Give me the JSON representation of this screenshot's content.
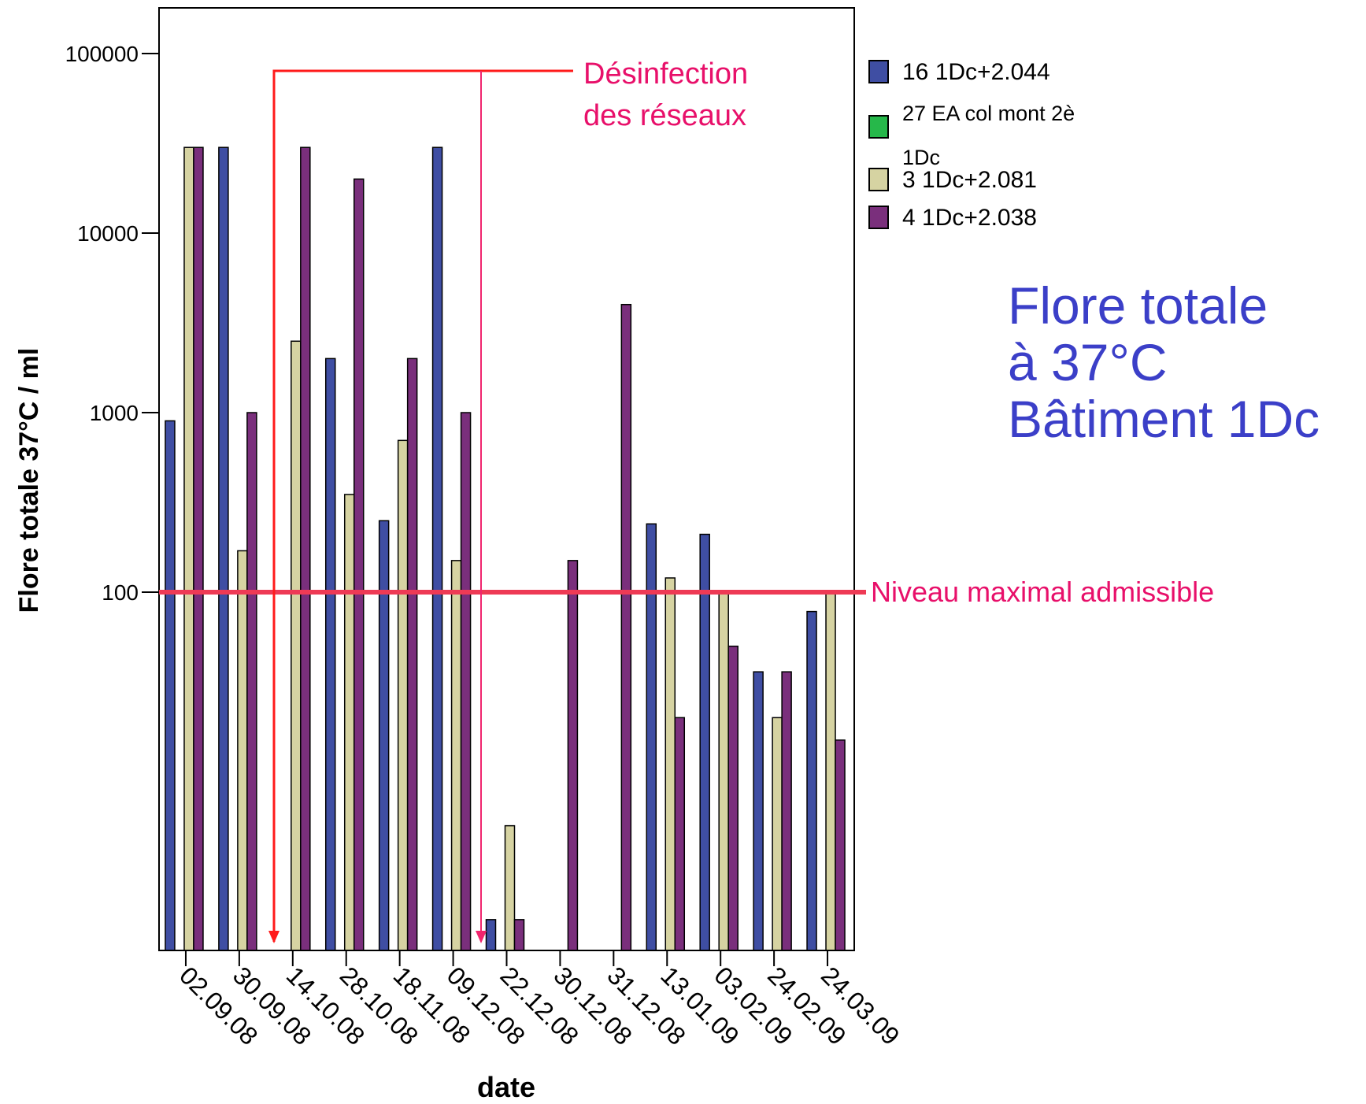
{
  "chart_data": {
    "type": "bar",
    "title": "",
    "xlabel": "date",
    "ylabel": "Flore totale 37°C / ml",
    "yscale": "log",
    "ylim": [
      0.1,
      200000
    ],
    "yticks": [
      "100",
      "1000",
      "10000",
      "100000"
    ],
    "grid": false,
    "legend_position": "right",
    "categories": [
      "02.09.08",
      "30.09.08",
      "14.10.08",
      "28.10.08",
      "18.11.08",
      "09.12.08",
      "22.12.08",
      "30.12.08",
      "31.12.08",
      "13.01.09",
      "03.02.09",
      "24.02.09",
      "24.03.09"
    ],
    "series": [
      {
        "name": "16 1Dc+2.044",
        "color": "#3f4ea3",
        "values": [
          900,
          30000,
          null,
          2000,
          250,
          30000,
          1.5,
          null,
          null,
          240,
          210,
          36,
          78
        ]
      },
      {
        "name": "27 EA col mont 2è 1Dc",
        "color": "#26b84a",
        "values": [
          null,
          null,
          null,
          null,
          null,
          null,
          null,
          null,
          null,
          null,
          null,
          null,
          null
        ]
      },
      {
        "name": "3 1Dc+2.081",
        "color": "#d6d3a2",
        "values": [
          30000,
          170,
          2500,
          350,
          700,
          150,
          5,
          null,
          null,
          120,
          100,
          20,
          100
        ]
      },
      {
        "name": "4 1Dc+2.038",
        "color": "#7a2f7c",
        "values": [
          30000,
          1000,
          30000,
          20000,
          2000,
          1000,
          1.5,
          150,
          4000,
          20,
          50,
          36,
          15
        ]
      }
    ],
    "reference_line": {
      "value": 100,
      "label": "Niveau maximal admissible",
      "color": "#ee3a55"
    },
    "annotation": {
      "label_line1": "Désinfection",
      "label_line2": "des réseaux",
      "color": "#e8106a",
      "arrow_color_1": "#ff1a1a",
      "arrow_color_2": "#f0256e"
    }
  },
  "side_title": {
    "line1": "Flore totale",
    "line2": "à 37°C",
    "line3": "Bâtiment 1Dc",
    "color": "#3b3fc8"
  }
}
